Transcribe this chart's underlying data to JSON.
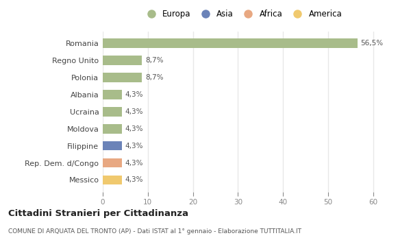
{
  "categories": [
    "Messico",
    "Rep. Dem. d/Congo",
    "Filippine",
    "Moldova",
    "Ucraina",
    "Albania",
    "Polonia",
    "Regno Unito",
    "Romania"
  ],
  "values": [
    4.3,
    4.3,
    4.3,
    4.3,
    4.3,
    4.3,
    8.7,
    8.7,
    56.5
  ],
  "labels": [
    "4,3%",
    "4,3%",
    "4,3%",
    "4,3%",
    "4,3%",
    "4,3%",
    "8,7%",
    "8,7%",
    "56,5%"
  ],
  "colors": [
    "#f0c96e",
    "#e8a882",
    "#6b83b8",
    "#a8bc8a",
    "#a8bc8a",
    "#a8bc8a",
    "#a8bc8a",
    "#a8bc8a",
    "#a8bc8a"
  ],
  "legend_labels": [
    "Europa",
    "Asia",
    "Africa",
    "America"
  ],
  "legend_colors": [
    "#a8bc8a",
    "#6b83b8",
    "#e8a882",
    "#f0c96e"
  ],
  "title": "Cittadini Stranieri per Cittadinanza",
  "subtitle": "COMUNE DI ARQUATA DEL TRONTO (AP) - Dati ISTAT al 1° gennaio - Elaborazione TUTTITALIA.IT",
  "xlim": [
    0,
    62
  ],
  "xticks": [
    0,
    10,
    20,
    30,
    40,
    50,
    60
  ],
  "bg_color": "#ffffff",
  "plot_bg_color": "#ffffff",
  "grid_color": "#e8e8e8"
}
